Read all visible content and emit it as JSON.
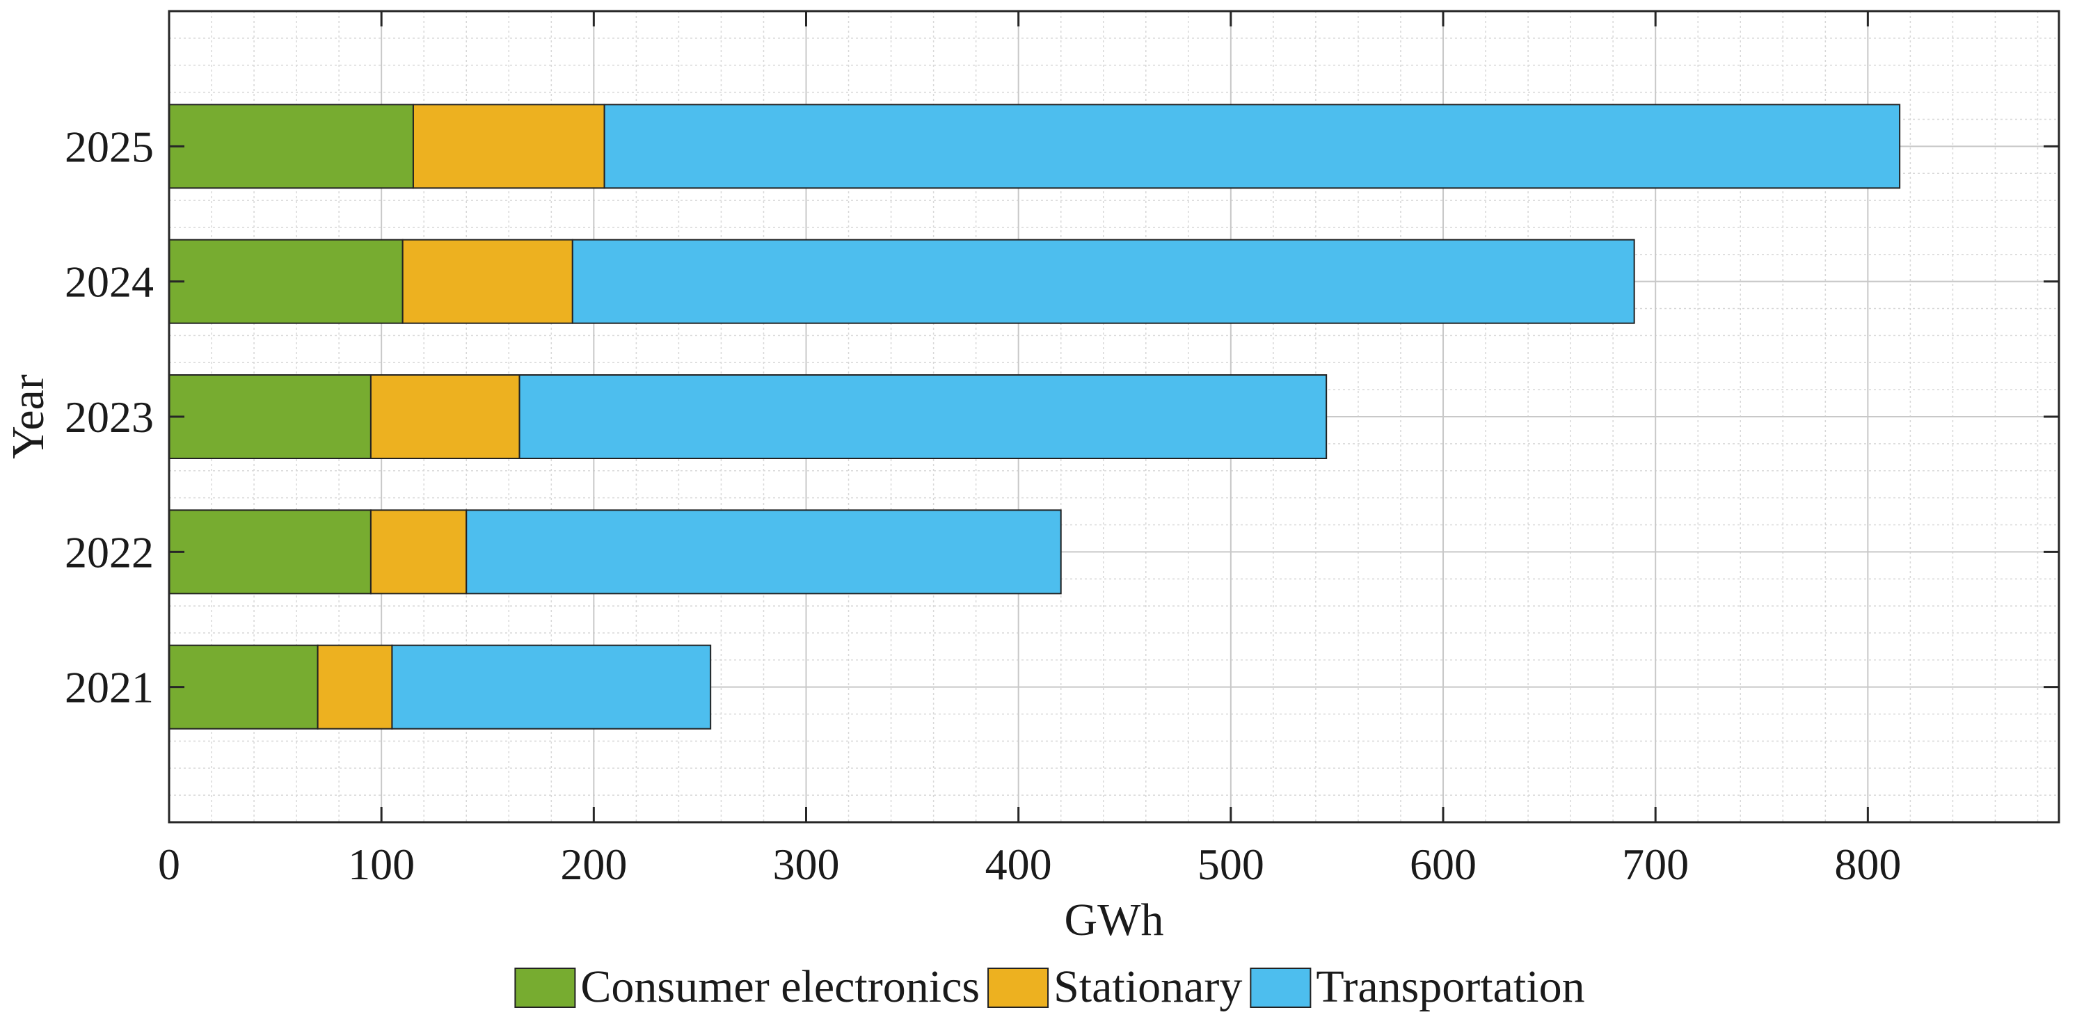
{
  "chart_data": {
    "type": "bar",
    "orientation": "horizontal",
    "stacked": true,
    "title": "",
    "xlabel": "GWh",
    "ylabel": "Year",
    "categories": [
      "2021",
      "2022",
      "2023",
      "2024",
      "2025"
    ],
    "series": [
      {
        "name": "Consumer electronics",
        "color": "#77AC30",
        "values": [
          70,
          95,
          95,
          110,
          115
        ]
      },
      {
        "name": "Stationary",
        "color": "#EDB120",
        "values": [
          35,
          45,
          70,
          80,
          90
        ]
      },
      {
        "name": "Transportation",
        "color": "#4DBEEE",
        "values": [
          150,
          280,
          380,
          500,
          610
        ]
      }
    ],
    "xlim": [
      0,
      890
    ],
    "xticks": [
      "0",
      "100",
      "200",
      "300",
      "400",
      "500",
      "600",
      "700",
      "800"
    ],
    "ylim": [
      2020,
      2026
    ],
    "grid": true,
    "minor_grid": true,
    "legend_position": "bottom"
  }
}
